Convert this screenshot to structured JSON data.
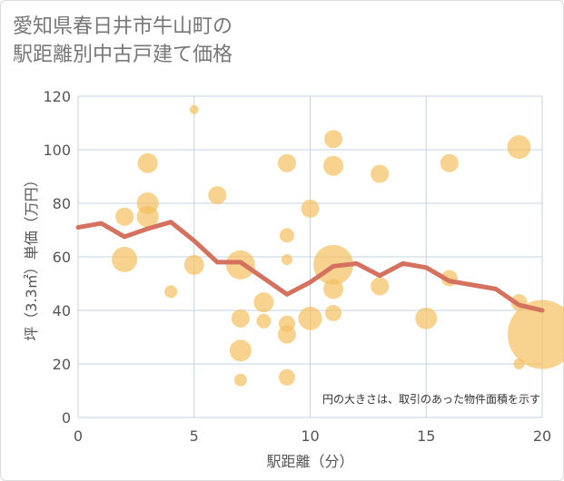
{
  "title_lines": [
    "愛知県春日井市牛山町の",
    "駅距離別中古戸建て価格"
  ],
  "colors": {
    "bubble": "#f5c060",
    "bubble_opacity": 0.7,
    "line": "#d4715f",
    "grid": "#c5d3e0",
    "plot_bg": "#ffffff",
    "text": "#555555"
  },
  "chart_data": {
    "type": "scatter",
    "title": "愛知県春日井市牛山町の駅距離別中古戸建て価格",
    "xlabel": "駅距離（分）",
    "ylabel": "坪（3.3㎡）単価（万円）",
    "xlim": [
      0,
      20
    ],
    "ylim": [
      0,
      120
    ],
    "xticks": [
      0,
      5,
      10,
      15,
      20
    ],
    "yticks": [
      0,
      20,
      40,
      60,
      80,
      100,
      120
    ],
    "grid": true,
    "note": "円の大きさは、取引のあった物件面積を示す",
    "bubbles": [
      {
        "x": 2,
        "y": 75,
        "size": 1.0
      },
      {
        "x": 2,
        "y": 59,
        "size": 1.4
      },
      {
        "x": 3,
        "y": 95,
        "size": 1.1
      },
      {
        "x": 3,
        "y": 80,
        "size": 1.2
      },
      {
        "x": 3,
        "y": 75,
        "size": 1.2
      },
      {
        "x": 4,
        "y": 47,
        "size": 0.7
      },
      {
        "x": 5,
        "y": 115,
        "size": 0.5
      },
      {
        "x": 5,
        "y": 57,
        "size": 1.1
      },
      {
        "x": 6,
        "y": 83,
        "size": 1.0
      },
      {
        "x": 7,
        "y": 57,
        "size": 1.6
      },
      {
        "x": 7,
        "y": 37,
        "size": 1.0
      },
      {
        "x": 7,
        "y": 25,
        "size": 1.2
      },
      {
        "x": 7,
        "y": 14,
        "size": 0.7
      },
      {
        "x": 8,
        "y": 43,
        "size": 1.1
      },
      {
        "x": 8,
        "y": 36,
        "size": 0.8
      },
      {
        "x": 9,
        "y": 95,
        "size": 1.0
      },
      {
        "x": 9,
        "y": 68,
        "size": 0.8
      },
      {
        "x": 9,
        "y": 59,
        "size": 0.6
      },
      {
        "x": 9,
        "y": 35,
        "size": 0.9
      },
      {
        "x": 9,
        "y": 31,
        "size": 1.0
      },
      {
        "x": 9,
        "y": 15,
        "size": 0.9
      },
      {
        "x": 10,
        "y": 78,
        "size": 1.0
      },
      {
        "x": 10,
        "y": 37,
        "size": 1.3
      },
      {
        "x": 11,
        "y": 104,
        "size": 1.0
      },
      {
        "x": 11,
        "y": 94,
        "size": 1.1
      },
      {
        "x": 11,
        "y": 57,
        "size": 2.2
      },
      {
        "x": 11,
        "y": 48,
        "size": 1.1
      },
      {
        "x": 11,
        "y": 39,
        "size": 0.9
      },
      {
        "x": 13,
        "y": 91,
        "size": 1.0
      },
      {
        "x": 13,
        "y": 49,
        "size": 1.0
      },
      {
        "x": 15,
        "y": 37,
        "size": 1.2
      },
      {
        "x": 16,
        "y": 95,
        "size": 1.0
      },
      {
        "x": 16,
        "y": 52,
        "size": 0.9
      },
      {
        "x": 19,
        "y": 101,
        "size": 1.3
      },
      {
        "x": 19,
        "y": 43,
        "size": 0.9
      },
      {
        "x": 19,
        "y": 20,
        "size": 0.6
      },
      {
        "x": 20,
        "y": 31,
        "size": 3.8
      }
    ],
    "average_line": {
      "x": [
        0,
        1,
        2,
        3,
        4,
        5,
        6,
        7,
        8,
        9,
        10,
        11,
        12,
        13,
        14,
        15,
        16,
        17,
        18,
        19,
        20
      ],
      "y": [
        71,
        72.5,
        67.5,
        70.5,
        73,
        66,
        58,
        58,
        52,
        46,
        50.5,
        56.5,
        57.5,
        53,
        57.5,
        56,
        51,
        49.5,
        48,
        42,
        40
      ]
    }
  }
}
